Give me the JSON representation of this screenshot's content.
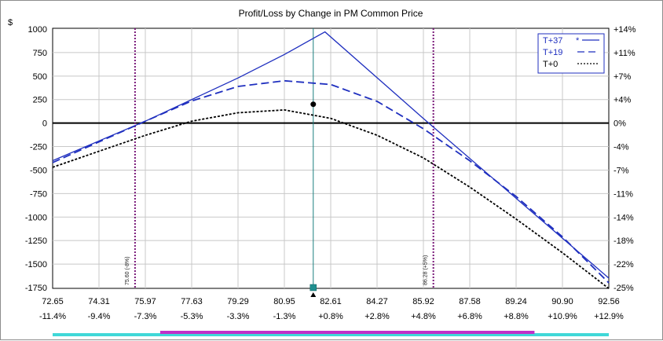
{
  "chart_data": {
    "type": "line",
    "title": "Profit/Loss by Change in PM Common Price",
    "currency_label": "$",
    "x_ticks": [
      "72.65",
      "74.31",
      "75.97",
      "77.63",
      "79.29",
      "80.95",
      "82.61",
      "84.27",
      "85.92",
      "87.58",
      "89.24",
      "90.90",
      "92.56"
    ],
    "x_pct_ticks": [
      "-11.4%",
      "-9.4%",
      "-7.3%",
      "-5.3%",
      "-3.3%",
      "-1.3%",
      "+0.8%",
      "+2.8%",
      "+4.8%",
      "+6.8%",
      "+8.8%",
      "+10.9%",
      "+12.9%"
    ],
    "y_ticks": [
      1000,
      750,
      500,
      250,
      0,
      -250,
      -500,
      -750,
      -1000,
      -1250,
      -1500,
      -1750
    ],
    "y_tick_labels": [
      "1000",
      "750",
      "500",
      "250",
      "0",
      "-250",
      "-500",
      "-750",
      "-1000",
      "-1250",
      "-1500",
      "-1750"
    ],
    "y_right_ticks": [
      "+14%",
      "+11%",
      "+7%",
      "+4%",
      "0%",
      "-4%",
      "-7%",
      "-11%",
      "-14%",
      "-18%",
      "-22%",
      "-25%"
    ],
    "xlim": [
      72.65,
      92.56
    ],
    "ylim": [
      -1750,
      1000
    ],
    "grid": true,
    "legend_position": "top-right",
    "current_price": 81.98,
    "current_point": {
      "x": 81.98,
      "y": 200
    },
    "series": [
      {
        "name": "T+37",
        "legend_marker": "*",
        "style": "solid",
        "color": "#1f2fbf",
        "x": [
          72.65,
          75.97,
          79.29,
          80.95,
          82.4,
          85.92,
          89.24,
          92.56
        ],
        "y": [
          -400,
          20,
          480,
          730,
          970,
          50,
          -800,
          -1650
        ]
      },
      {
        "name": "T+19",
        "style": "dashed",
        "color": "#1f2fbf",
        "x": [
          72.65,
          74.31,
          75.97,
          77.63,
          79.29,
          80.95,
          82.61,
          84.27,
          85.92,
          87.58,
          89.24,
          90.9,
          92.56
        ],
        "y": [
          -420,
          -200,
          20,
          235,
          390,
          450,
          410,
          230,
          -60,
          -400,
          -780,
          -1210,
          -1700
        ]
      },
      {
        "name": "T+0",
        "style": "dotted",
        "color": "#000000",
        "x": [
          72.65,
          74.31,
          75.97,
          77.63,
          79.29,
          80.95,
          82.61,
          84.27,
          85.92,
          87.58,
          89.24,
          90.9,
          92.56
        ],
        "y": [
          -470,
          -300,
          -130,
          20,
          110,
          140,
          50,
          -130,
          -370,
          -680,
          -1020,
          -1380,
          -1760
        ]
      }
    ],
    "breakeven_lines": [
      {
        "x": 75.6,
        "label": "75.60 (-8%)"
      },
      {
        "x": 86.28,
        "label": "86.28 (+5%)"
      }
    ],
    "colors": {
      "payoff": "#1f2fbf",
      "breakeven": "#7a1a7a",
      "current_price_line": "#1b7f7f",
      "marker": "#1f8f8f",
      "bar_cyan": "#40d8d8",
      "bar_magenta": "#c030c8"
    },
    "range_bar": {
      "cyan_range": [
        72.65,
        92.56
      ],
      "magenta_range": [
        76.5,
        89.9
      ]
    }
  }
}
